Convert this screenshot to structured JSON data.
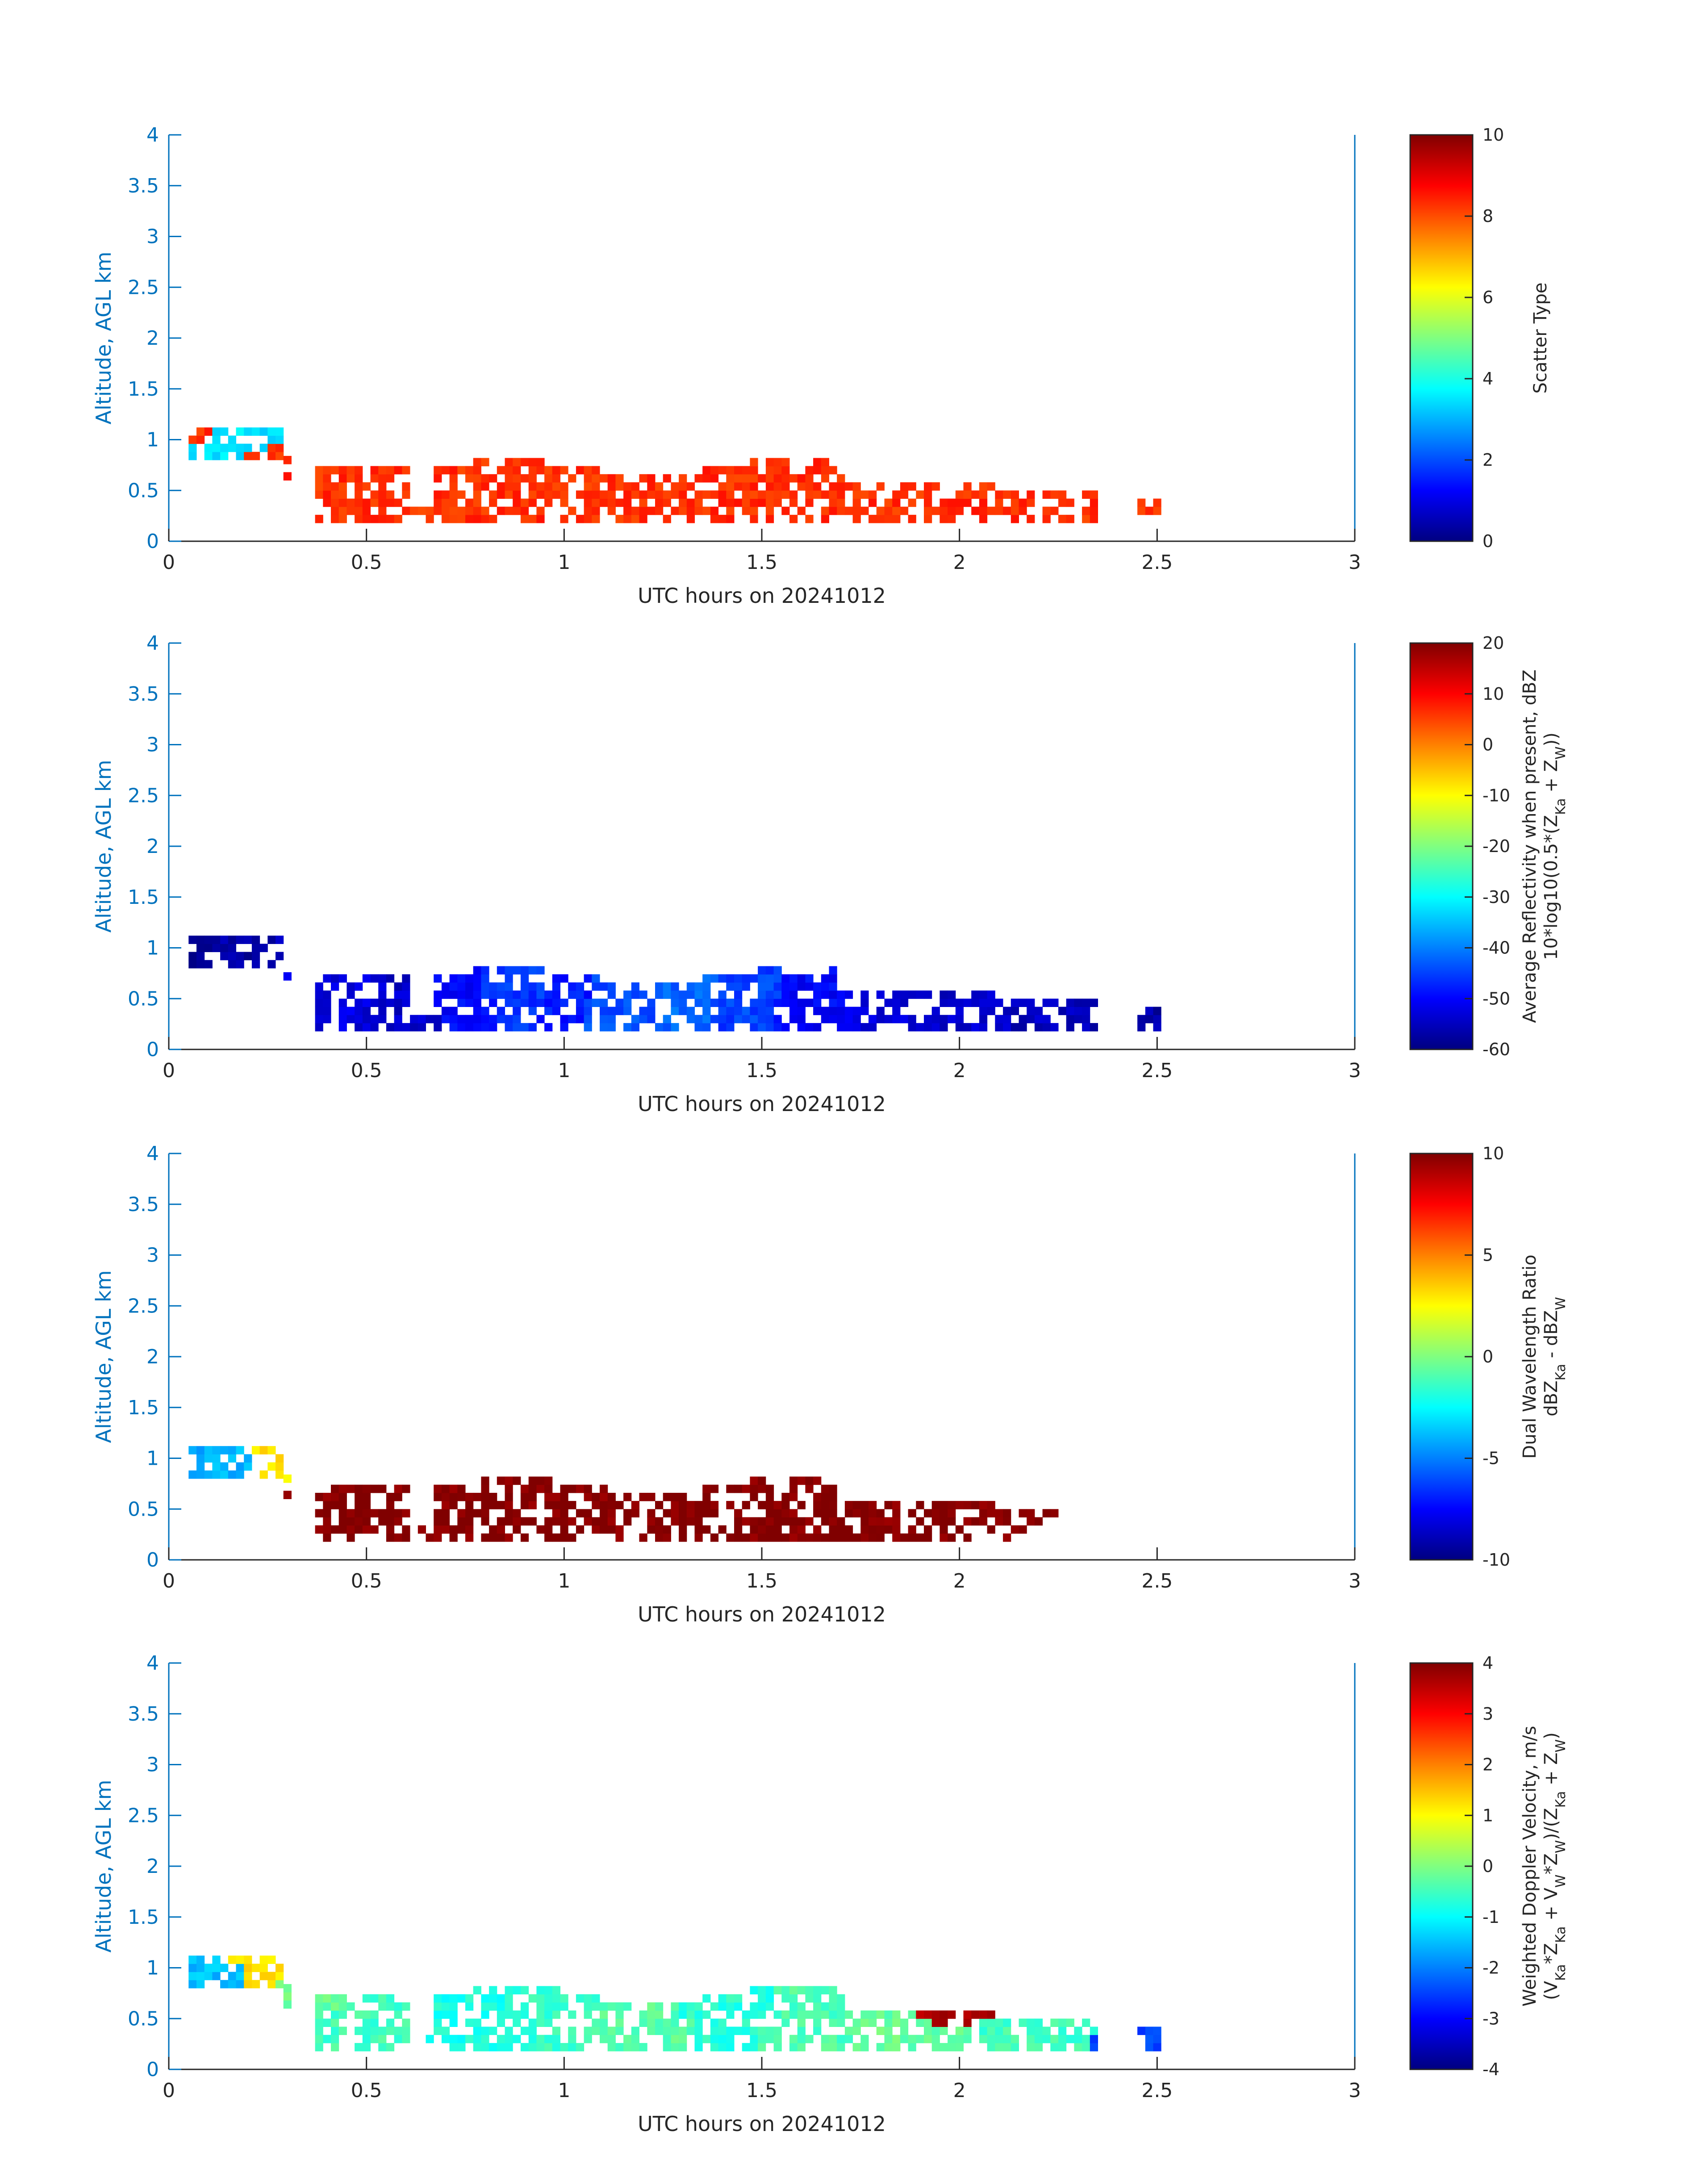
{
  "chart_data": [
    {
      "type": "heatmap",
      "xlabel": "UTC hours on 20241012",
      "ylabel": "Altitude, AGL km",
      "xlim": [
        0,
        3
      ],
      "ylim": [
        0,
        4
      ],
      "x_ticks": [
        "0",
        "0.5",
        "1",
        "1.5",
        "2",
        "2.5",
        "3"
      ],
      "y_ticks": [
        "0",
        "0.5",
        "1",
        "1.5",
        "2",
        "2.5",
        "3",
        "3.5",
        "4"
      ],
      "colorbar": {
        "label_lines": [
          "Scatter Type"
        ],
        "clim": [
          0,
          10
        ],
        "ticks": [
          "0",
          "2",
          "4",
          "6",
          "8",
          "10"
        ],
        "colormap": "jet"
      },
      "cells": [
        [
          0.08,
          0.87,
          3.5
        ],
        [
          0.13,
          0.95,
          3.5
        ],
        [
          0.17,
          1.0,
          3.5
        ],
        [
          0.22,
          1.02,
          3.5
        ],
        [
          0.06,
          1.0,
          8.3
        ],
        [
          0.27,
          0.77,
          8.3
        ],
        [
          0.42,
          0.55,
          8.3
        ],
        [
          0.5,
          0.45,
          8.3
        ],
        [
          0.75,
          0.45,
          8.3
        ],
        [
          0.9,
          0.5,
          8.3
        ],
        [
          1.0,
          0.45,
          8.3
        ],
        [
          1.15,
          0.5,
          8.3
        ],
        [
          1.3,
          0.55,
          8.3
        ],
        [
          1.45,
          0.5,
          8.3
        ],
        [
          1.6,
          0.45,
          8.3
        ],
        [
          1.85,
          0.35,
          8.3
        ],
        [
          1.98,
          0.35,
          8.3
        ],
        [
          2.2,
          0.42,
          8.3
        ],
        [
          2.48,
          0.38,
          8.3
        ]
      ]
    },
    {
      "type": "heatmap",
      "xlabel": "UTC hours on 20241012",
      "ylabel": "Altitude, AGL km",
      "xlim": [
        0,
        3
      ],
      "ylim": [
        0,
        4
      ],
      "x_ticks": [
        "0",
        "0.5",
        "1",
        "1.5",
        "2",
        "2.5",
        "3"
      ],
      "y_ticks": [
        "0",
        "0.5",
        "1",
        "1.5",
        "2",
        "2.5",
        "3",
        "3.5",
        "4"
      ],
      "colorbar": {
        "label_lines": [
          "Average Reflectivity when present, dBZ",
          "10*log10(0.5*(Z_Ka + Z_W))"
        ],
        "clim": [
          -60,
          20
        ],
        "ticks": [
          "-60",
          "-50",
          "-40",
          "-30",
          "-20",
          "-10",
          "0",
          "10",
          "20"
        ],
        "colormap": "jet"
      },
      "cells": [
        [
          0.08,
          0.9,
          -58
        ],
        [
          0.15,
          0.95,
          -57
        ],
        [
          0.22,
          0.98,
          -56
        ],
        [
          0.35,
          0.55,
          -53
        ],
        [
          0.45,
          0.45,
          -52
        ],
        [
          0.55,
          0.3,
          -54
        ],
        [
          0.75,
          0.45,
          -50
        ],
        [
          0.85,
          0.5,
          -46
        ],
        [
          1.0,
          0.45,
          -48
        ],
        [
          1.1,
          0.4,
          -44
        ],
        [
          1.3,
          0.5,
          -42
        ],
        [
          1.45,
          0.45,
          -45
        ],
        [
          1.6,
          0.4,
          -50
        ],
        [
          1.85,
          0.35,
          -53
        ],
        [
          2.0,
          0.35,
          -54
        ],
        [
          2.2,
          0.4,
          -55
        ],
        [
          2.48,
          0.35,
          -57
        ]
      ]
    },
    {
      "type": "heatmap",
      "xlabel": "UTC hours on 20241012",
      "ylabel": "Altitude, AGL km",
      "xlim": [
        0,
        3
      ],
      "ylim": [
        0,
        4
      ],
      "x_ticks": [
        "0",
        "0.5",
        "1",
        "1.5",
        "2",
        "2.5",
        "3"
      ],
      "y_ticks": [
        "0",
        "0.5",
        "1",
        "1.5",
        "2",
        "2.5",
        "3",
        "3.5",
        "4"
      ],
      "colorbar": {
        "label_lines": [
          "Dual Wavelength Ratio",
          "dBZ_Ka - dBZ_W"
        ],
        "clim": [
          -10,
          10
        ],
        "ticks": [
          "-10",
          "-5",
          "0",
          "5",
          "10"
        ],
        "colormap": "jet"
      },
      "cells": [
        [
          0.16,
          0.95,
          -4
        ],
        [
          0.22,
          1.0,
          3
        ],
        [
          0.42,
          0.6,
          10
        ],
        [
          0.7,
          0.35,
          10
        ],
        [
          0.85,
          0.5,
          10
        ],
        [
          0.98,
          0.55,
          10
        ],
        [
          1.2,
          0.5,
          10
        ],
        [
          1.35,
          0.5,
          10
        ],
        [
          1.5,
          0.45,
          10
        ],
        [
          1.6,
          0.45,
          10
        ],
        [
          1.85,
          0.4,
          10
        ],
        [
          2.0,
          0.42,
          10
        ]
      ]
    },
    {
      "type": "heatmap",
      "xlabel": "UTC hours on 20241012",
      "ylabel": "Altitude, AGL km",
      "xlim": [
        0,
        3
      ],
      "ylim": [
        0,
        4
      ],
      "x_ticks": [
        "0",
        "0.5",
        "1",
        "1.5",
        "2",
        "2.5",
        "3"
      ],
      "y_ticks": [
        "0",
        "0.5",
        "1",
        "1.5",
        "2",
        "2.5",
        "3",
        "3.5",
        "4"
      ],
      "colorbar": {
        "label_lines": [
          "Weighted Doppler Velocity, m/s",
          "(V_Ka*Z_Ka + V_W*Z_W)/(Z_Ka + Z_W)"
        ],
        "clim": [
          -4,
          4
        ],
        "ticks": [
          "-4",
          "-3",
          "-2",
          "-1",
          "0",
          "1",
          "2",
          "3",
          "4"
        ],
        "colormap": "jet"
      },
      "cells": [
        [
          0.1,
          0.95,
          -1.5
        ],
        [
          0.2,
          1.05,
          1.2
        ],
        [
          0.35,
          0.6,
          -0.2
        ],
        [
          0.45,
          0.45,
          -0.5
        ],
        [
          0.75,
          0.45,
          -0.8
        ],
        [
          0.95,
          0.5,
          -0.6
        ],
        [
          1.2,
          0.45,
          -0.3
        ],
        [
          1.4,
          0.5,
          -0.7
        ],
        [
          1.6,
          0.4,
          -0.4
        ],
        [
          1.85,
          0.35,
          -0.2
        ],
        [
          1.95,
          0.55,
          3.6
        ],
        [
          2.2,
          0.4,
          -0.5
        ],
        [
          2.48,
          0.3,
          -2.5
        ]
      ]
    }
  ]
}
